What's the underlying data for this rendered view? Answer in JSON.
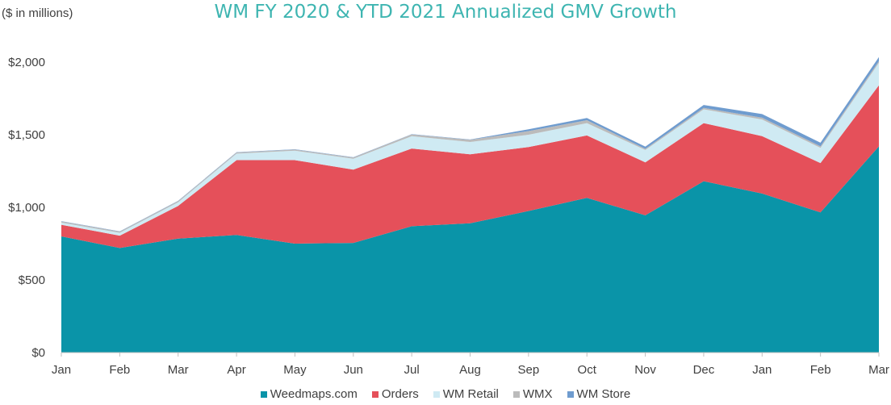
{
  "title": "WM FY 2020 & YTD 2021 Annualized GMV Growth",
  "unit_label": "($ in millions)",
  "chart_data": {
    "type": "area",
    "stacked": true,
    "title": "WM FY 2020 & YTD 2021 Annualized GMV Growth",
    "ylabel": "($ in millions)",
    "xlabel": "",
    "categories": [
      "Jan",
      "Feb",
      "Mar",
      "Apr",
      "May",
      "Jun",
      "Jul",
      "Aug",
      "Sep",
      "Oct",
      "Nov",
      "Dec",
      "Jan",
      "Feb",
      "Mar"
    ],
    "ylim": [
      0,
      2000
    ],
    "yticks": [
      0,
      500,
      1000,
      1500,
      2000
    ],
    "ytick_labels": [
      "$0",
      "$500",
      "$1,000",
      "$1,500",
      "$2,000"
    ],
    "grid": false,
    "legend_position": "bottom",
    "series": [
      {
        "name": "Weedmaps.com",
        "color": "#0a94a8",
        "values": [
          800,
          720,
          785,
          810,
          750,
          755,
          870,
          890,
          975,
          1065,
          945,
          1180,
          1095,
          965,
          1420
        ]
      },
      {
        "name": "Orders",
        "color": "#e5505a",
        "values": [
          80,
          85,
          225,
          515,
          575,
          505,
          535,
          475,
          440,
          430,
          365,
          400,
          395,
          340,
          420
        ]
      },
      {
        "name": "WM Retail",
        "color": "#cfeaf3",
        "values": [
          15,
          20,
          25,
          45,
          65,
          75,
          85,
          85,
          85,
          85,
          85,
          95,
          115,
          105,
          155
        ]
      },
      {
        "name": "WMX",
        "color": "#bbbbbb",
        "values": [
          8,
          8,
          8,
          8,
          8,
          8,
          12,
          15,
          25,
          20,
          8,
          10,
          12,
          10,
          12
        ]
      },
      {
        "name": "WM Store",
        "color": "#6f9ccf",
        "values": [
          2,
          2,
          2,
          2,
          2,
          2,
          2,
          2,
          12,
          15,
          15,
          20,
          25,
          25,
          28
        ]
      }
    ]
  }
}
